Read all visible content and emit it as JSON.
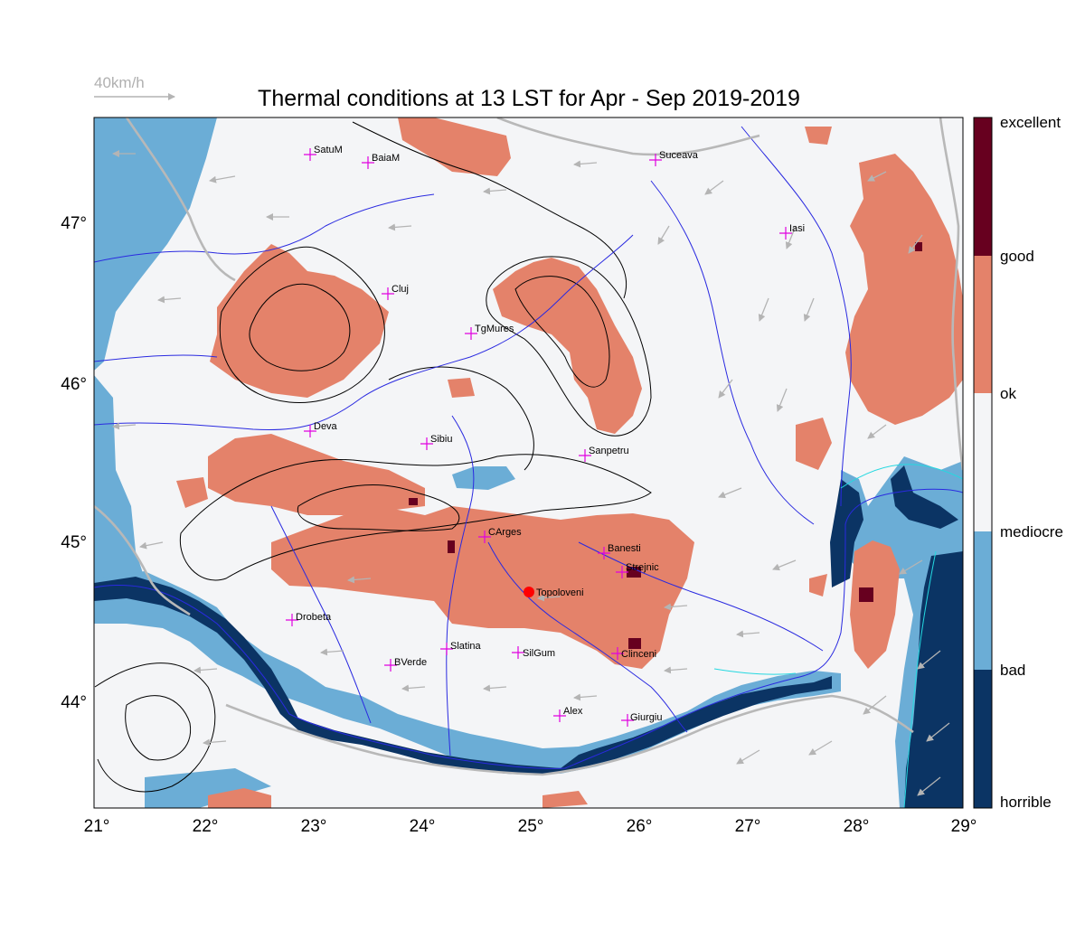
{
  "title": "Thermal conditions at 13 LST for Apr - Sep  2019-2019",
  "wind_reference": {
    "label": "40km/h",
    "color": "#b0b0b0"
  },
  "axes": {
    "lon_ticks": [
      "21°",
      "22°",
      "23°",
      "24°",
      "25°",
      "26°",
      "27°",
      "28°",
      "29°"
    ],
    "lat_ticks": [
      "44°",
      "45°",
      "46°",
      "47°"
    ]
  },
  "colorbar": {
    "labels": [
      "excellent",
      "good",
      "ok",
      "mediocre",
      "bad",
      "horrible"
    ],
    "colors": {
      "excellent": "#67001f",
      "good": "#e4826a",
      "ok": "#f4f5f7",
      "bad": "#6badd6",
      "horrible": "#0b3464"
    }
  },
  "cities": [
    {
      "name": "SatuM"
    },
    {
      "name": "BaiaM"
    },
    {
      "name": "Suceava"
    },
    {
      "name": "Iasi"
    },
    {
      "name": "Cluj"
    },
    {
      "name": "TgMures"
    },
    {
      "name": "Deva"
    },
    {
      "name": "Sibiu"
    },
    {
      "name": "Sanpetru"
    },
    {
      "name": "CArges"
    },
    {
      "name": "Banesti"
    },
    {
      "name": "Strejnic"
    },
    {
      "name": "Topoloveni"
    },
    {
      "name": "Drobeta"
    },
    {
      "name": "Slatina"
    },
    {
      "name": "SilGum"
    },
    {
      "name": "Clinceni"
    },
    {
      "name": "BVerde"
    },
    {
      "name": "Alex"
    },
    {
      "name": "Giurgiu"
    }
  ],
  "marker_color": "#e000e0",
  "highlight_color": "#ff0000"
}
